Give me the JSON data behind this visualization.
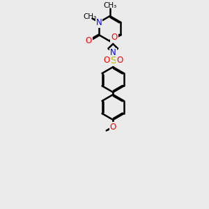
{
  "bg_color": "#ebebeb",
  "atom_colors": {
    "C": "#000000",
    "N": "#0000ff",
    "O": "#ff0000",
    "S": "#bbbb00"
  },
  "bond_color": "#000000",
  "bond_lw": 1.8,
  "font_size_atom": 8.5,
  "font_size_methyl": 7.5
}
